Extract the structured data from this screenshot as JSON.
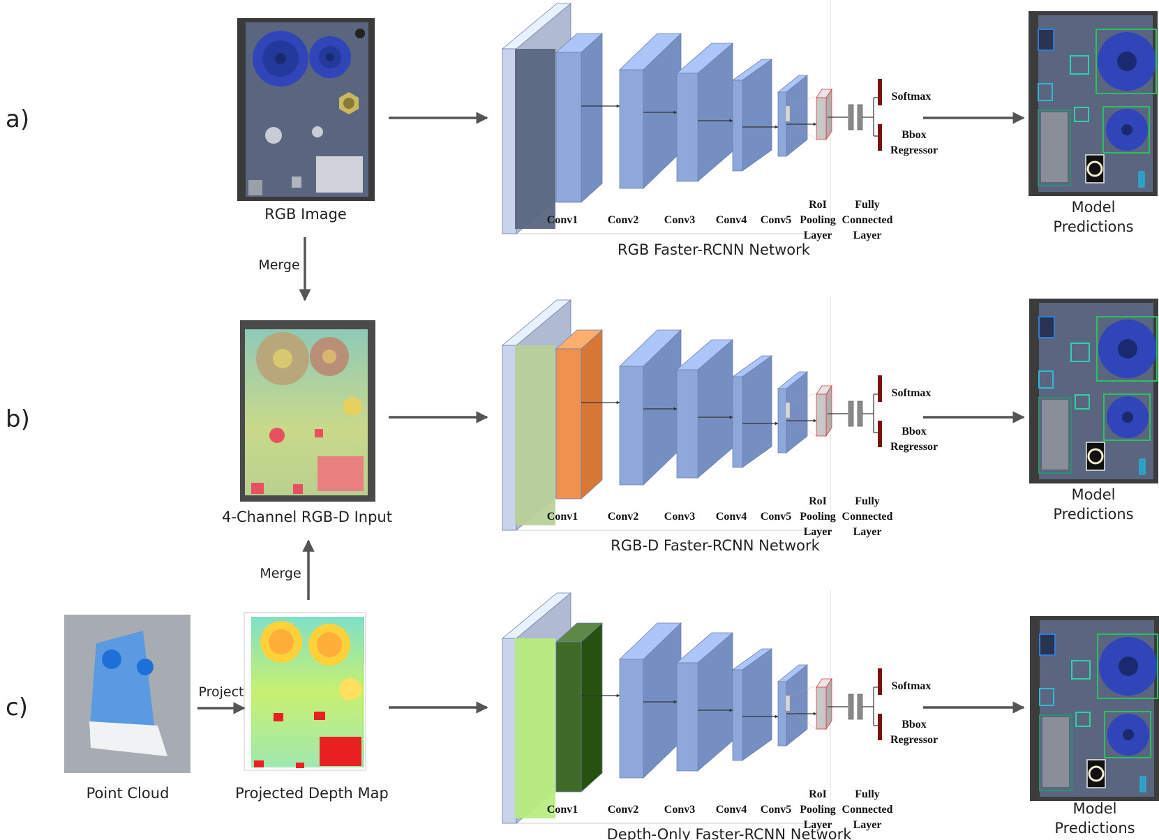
{
  "rows": [
    {
      "label": "a)",
      "input_caption": "RGB Image",
      "network_title": "RGB Faster-RCNN Network",
      "output_caption_line1": "Model",
      "output_caption_line2": "Predictions",
      "conv1_color": "#8fa8dc"
    },
    {
      "label": "b)",
      "input_caption": "4-Channel RGB-D Input",
      "network_title": "RGB-D Faster-RCNN Network",
      "output_caption_line1": "Model",
      "output_caption_line2": "Predictions",
      "conv1_color": "#f0914f"
    },
    {
      "label": "c)",
      "input_caption": "Projected Depth Map",
      "network_title": "Depth-Only Faster-RCNN Network",
      "output_caption_line1": "Model",
      "output_caption_line2": "Predictions",
      "conv1_color": "#3f6a27"
    }
  ],
  "point_cloud_caption": "Point Cloud",
  "project_label": "Project",
  "merge_label_top": "Merge",
  "merge_label_bottom": "Merge",
  "layers": {
    "conv1": "Conv1",
    "conv2": "Conv2",
    "conv3": "Conv3",
    "conv4": "Conv4",
    "conv5": "Conv5",
    "roi_1": "RoI",
    "roi_2": "Pooling",
    "roi_3": "Layer",
    "fc_1": "Fully",
    "fc_2": "Connected",
    "fc_3": "Layer",
    "softmax": "Softmax",
    "bbox_1": "Bbox",
    "bbox_2": "Regressor"
  },
  "colors": {
    "conv": "#8fa8dc",
    "arrow": "#555555",
    "board": "#5a6680",
    "gear": "#2f45b8",
    "output_head": "#7a1010",
    "roi": "#e23a3a"
  }
}
